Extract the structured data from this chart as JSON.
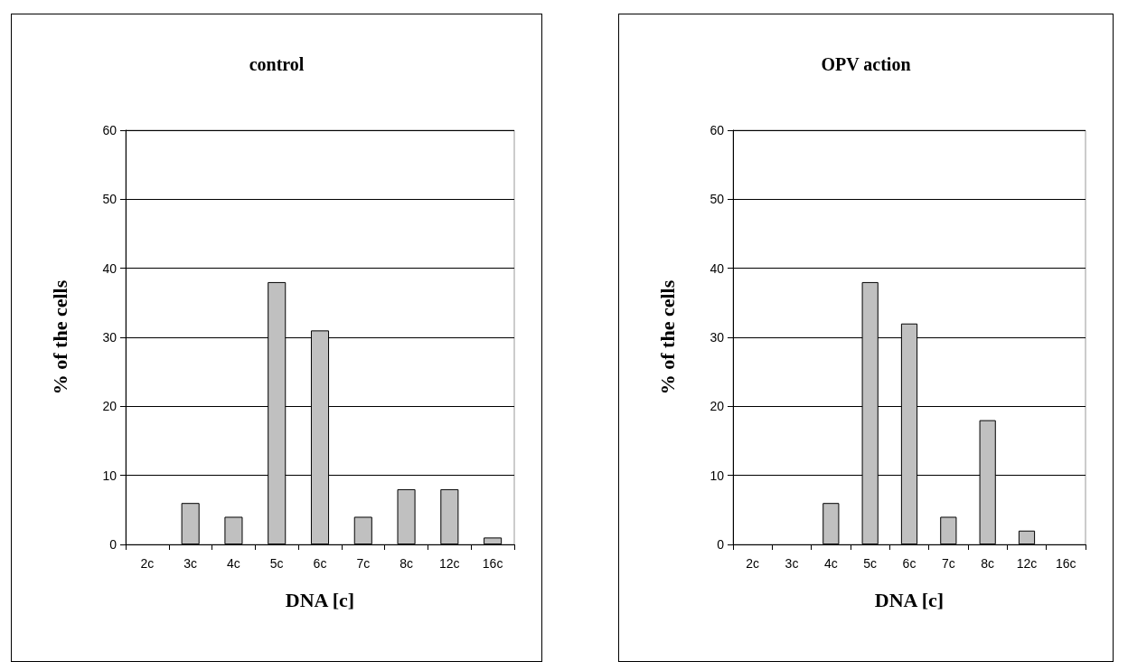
{
  "chart_data": [
    {
      "type": "bar",
      "title": "control",
      "xlabel": "DNA [c]",
      "ylabel": "% of the cells",
      "categories": [
        "2c",
        "3c",
        "4c",
        "5c",
        "6c",
        "7c",
        "8c",
        "12c",
        "16c"
      ],
      "values": [
        0,
        6,
        4,
        38,
        31,
        4,
        8,
        8,
        1
      ],
      "color": "#c0c0c0",
      "ylim": [
        0,
        60
      ],
      "yticks": [
        0,
        10,
        20,
        30,
        40,
        50,
        60
      ],
      "grid": "y"
    },
    {
      "type": "bar",
      "title": "OPV action",
      "xlabel": "DNA [c]",
      "ylabel": "% of the cells",
      "categories": [
        "2c",
        "3c",
        "4c",
        "5c",
        "6c",
        "7c",
        "8c",
        "12c",
        "16c"
      ],
      "values": [
        0,
        0,
        6,
        38,
        32,
        4,
        18,
        2,
        0
      ],
      "color": "#c0c0c0",
      "ylim": [
        0,
        60
      ],
      "yticks": [
        0,
        10,
        20,
        30,
        40,
        50,
        60
      ],
      "grid": "y"
    }
  ]
}
